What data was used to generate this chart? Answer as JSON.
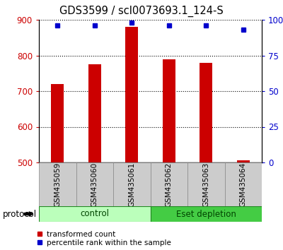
{
  "title": "GDS3599 / scl0073693.1_124-S",
  "samples": [
    "GSM435059",
    "GSM435060",
    "GSM435061",
    "GSM435062",
    "GSM435063",
    "GSM435064"
  ],
  "transformed_counts": [
    720,
    775,
    880,
    790,
    780,
    505
  ],
  "percentile_ranks": [
    96,
    96,
    98,
    96,
    96,
    93
  ],
  "bar_bottom": 500,
  "ylim_left": [
    500,
    900
  ],
  "ylim_right": [
    0,
    100
  ],
  "yticks_left": [
    500,
    600,
    700,
    800,
    900
  ],
  "yticks_right": [
    0,
    25,
    50,
    75,
    100
  ],
  "ytick_labels_right": [
    "0",
    "25",
    "50",
    "75",
    "100%"
  ],
  "bar_color": "#cc0000",
  "dot_color": "#0000cc",
  "protocol_groups": [
    {
      "label": "control",
      "samples": [
        0,
        1,
        2
      ],
      "color": "#bbffbb"
    },
    {
      "label": "Eset depletion",
      "samples": [
        3,
        4,
        5
      ],
      "color": "#44cc44"
    }
  ],
  "protocol_label": "protocol",
  "legend_items": [
    {
      "color": "#cc0000",
      "label": "transformed count"
    },
    {
      "color": "#0000cc",
      "label": "percentile rank within the sample"
    }
  ],
  "grid_color": "black",
  "tick_label_color_left": "#cc0000",
  "tick_label_color_right": "#0000cc",
  "figsize": [
    4.0,
    3.54
  ],
  "dpi": 100,
  "bar_width": 0.35,
  "sample_box_color": "#cccccc",
  "sample_box_edge": "#888888"
}
